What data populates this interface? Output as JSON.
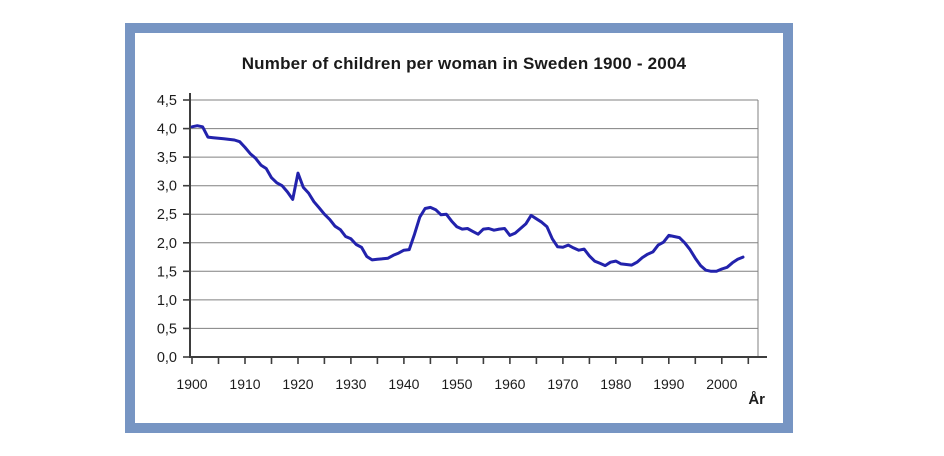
{
  "window": {
    "background": "#ffffff"
  },
  "frame": {
    "border_color": "#7795C3",
    "inner_background": "#ffffff"
  },
  "chart_data": {
    "type": "line",
    "title": "Number of children per woman in Sweden 1900 - 2004",
    "xlabel": "År",
    "ylabel": "",
    "xlim": [
      1900,
      2005
    ],
    "ylim": [
      0,
      4.5
    ],
    "grid": "horizontal gridlines every 0.5, plot box closed on top and right",
    "legend": "none",
    "line_color": "#2222AC",
    "axis_color": "#3d3d3d",
    "grid_color": "#808080",
    "y_ticks": [
      0,
      0.5,
      1.0,
      1.5,
      2.0,
      2.5,
      3.0,
      3.5,
      4.0,
      4.5
    ],
    "y_tick_labels": [
      "0,0",
      "0,5",
      "1,0",
      "1,5",
      "2,0",
      "2,5",
      "3,0",
      "3,5",
      "4,0",
      "4,5"
    ],
    "x_major_ticks": [
      1900,
      1910,
      1920,
      1930,
      1940,
      1950,
      1960,
      1970,
      1980,
      1990,
      2000
    ],
    "x_tick_labels": [
      "1900",
      "1910",
      "1920",
      "1930",
      "1940",
      "1950",
      "1960",
      "1970",
      "1980",
      "1990",
      "2000"
    ],
    "x_minor_tick_step": 5,
    "series": [
      {
        "name": "Children per woman",
        "x": [
          1900,
          1901,
          1902,
          1903,
          1904,
          1905,
          1906,
          1907,
          1908,
          1909,
          1910,
          1911,
          1912,
          1913,
          1914,
          1915,
          1916,
          1917,
          1918,
          1919,
          1920,
          1921,
          1922,
          1923,
          1924,
          1925,
          1926,
          1927,
          1928,
          1929,
          1930,
          1931,
          1932,
          1933,
          1934,
          1935,
          1936,
          1937,
          1938,
          1939,
          1940,
          1941,
          1942,
          1943,
          1944,
          1945,
          1946,
          1947,
          1948,
          1949,
          1950,
          1951,
          1952,
          1953,
          1954,
          1955,
          1956,
          1957,
          1958,
          1959,
          1960,
          1961,
          1962,
          1963,
          1964,
          1965,
          1966,
          1967,
          1968,
          1969,
          1970,
          1971,
          1972,
          1973,
          1974,
          1975,
          1976,
          1977,
          1978,
          1979,
          1980,
          1981,
          1982,
          1983,
          1984,
          1985,
          1986,
          1987,
          1988,
          1989,
          1990,
          1991,
          1992,
          1993,
          1994,
          1995,
          1996,
          1997,
          1998,
          1999,
          2000,
          2001,
          2002,
          2003,
          2004
        ],
        "values": [
          4.03,
          4.05,
          4.03,
          3.85,
          3.84,
          3.83,
          3.82,
          3.81,
          3.8,
          3.77,
          3.67,
          3.56,
          3.48,
          3.36,
          3.3,
          3.14,
          3.05,
          3.0,
          2.89,
          2.76,
          3.22,
          2.97,
          2.87,
          2.72,
          2.61,
          2.5,
          2.41,
          2.29,
          2.23,
          2.11,
          2.07,
          1.97,
          1.92,
          1.76,
          1.7,
          1.71,
          1.72,
          1.73,
          1.78,
          1.82,
          1.87,
          1.88,
          2.15,
          2.45,
          2.6,
          2.62,
          2.58,
          2.49,
          2.5,
          2.38,
          2.28,
          2.24,
          2.25,
          2.2,
          2.15,
          2.24,
          2.25,
          2.22,
          2.24,
          2.25,
          2.13,
          2.17,
          2.25,
          2.33,
          2.48,
          2.42,
          2.36,
          2.28,
          2.07,
          1.93,
          1.92,
          1.96,
          1.91,
          1.87,
          1.89,
          1.77,
          1.68,
          1.64,
          1.6,
          1.66,
          1.68,
          1.63,
          1.62,
          1.61,
          1.66,
          1.74,
          1.8,
          1.84,
          1.96,
          2.01,
          2.13,
          2.11,
          2.09,
          2.0,
          1.88,
          1.73,
          1.6,
          1.52,
          1.5,
          1.5,
          1.54,
          1.57,
          1.65,
          1.71,
          1.75
        ]
      }
    ]
  }
}
